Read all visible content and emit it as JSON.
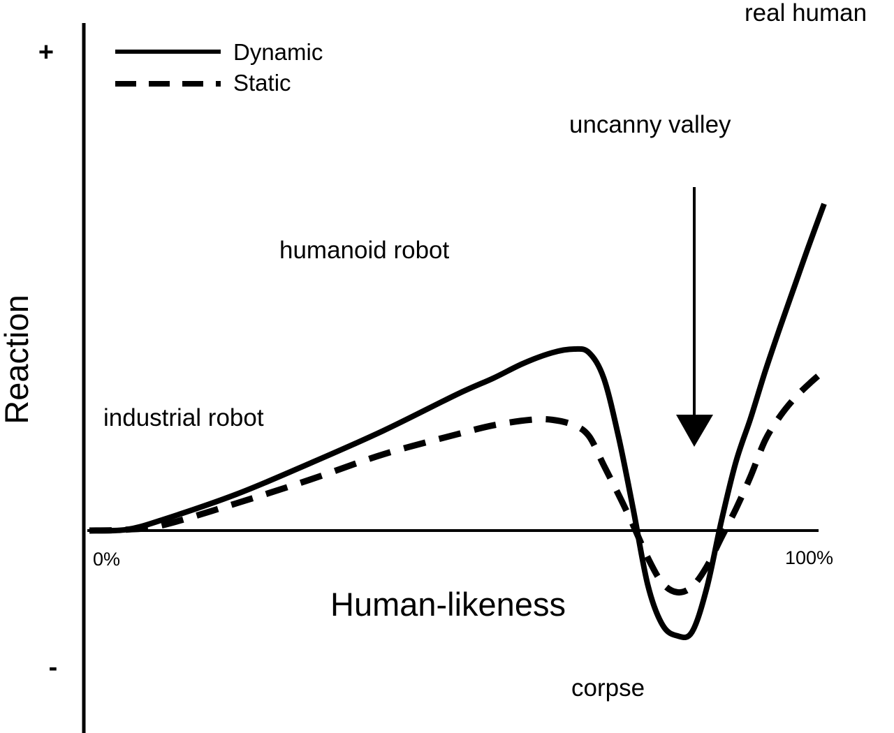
{
  "chart_data": {
    "type": "line",
    "xlabel": "Human-likeness",
    "ylabel": "Reaction",
    "xlim": [
      0,
      100
    ],
    "x_tick_labels": [
      "0%",
      "100%"
    ],
    "y_tick_labels": [
      "+",
      "-"
    ],
    "legend": {
      "position": "top-left",
      "entries": [
        "Dynamic",
        "Static"
      ]
    },
    "series": [
      {
        "name": "Dynamic",
        "style": "solid",
        "x": [
          0,
          5,
          10,
          20,
          30,
          40,
          50,
          55,
          59,
          63,
          66,
          68,
          70,
          72,
          74,
          76,
          78,
          80,
          82,
          84,
          86,
          88,
          90,
          92,
          94,
          96,
          98,
          100
        ],
        "y": [
          0,
          0.5,
          6,
          20,
          37,
          55,
          75,
          84,
          92,
          98,
          100,
          98,
          84,
          52,
          12,
          -30,
          -52,
          -58,
          -56,
          -32,
          5,
          38,
          62,
          88,
          112,
          135,
          158,
          180
        ]
      },
      {
        "name": "Static",
        "style": "dashed",
        "x": [
          0,
          5,
          10,
          20,
          30,
          40,
          50,
          55,
          60,
          63,
          66,
          68,
          70,
          72,
          74,
          76,
          78,
          80,
          82,
          84,
          86,
          88,
          90,
          92,
          94,
          96,
          98,
          100
        ],
        "y": [
          0,
          0.5,
          3,
          15,
          28,
          42,
          53,
          58,
          61,
          61,
          58,
          52,
          36,
          20,
          3,
          -15,
          -29,
          -34,
          -31,
          -20,
          -4,
          12,
          30,
          50,
          63,
          73,
          81,
          88
        ]
      }
    ],
    "annotations": [
      "real human",
      "uncanny valley",
      "humanoid robot",
      "industrial robot",
      "corpse"
    ]
  }
}
